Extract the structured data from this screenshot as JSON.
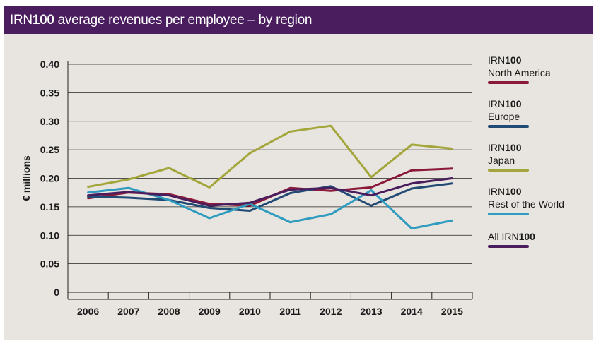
{
  "header": {
    "title_brand": "IRN",
    "title_brand_bold": "100",
    "title_rest": " average revenues per employee – by region"
  },
  "chart_data": {
    "type": "line",
    "title": "IRN100 average revenues per employee – by region",
    "xlabel": "",
    "ylabel": "€ millions",
    "categories": [
      "2006",
      "2007",
      "2008",
      "2009",
      "2010",
      "2011",
      "2012",
      "2013",
      "2014",
      "2015"
    ],
    "ylim": [
      0,
      0.4
    ],
    "yticks": [
      "0",
      "0.05",
      "0.10",
      "0.15",
      "0.20",
      "0.25",
      "0.30",
      "0.35",
      "0.40"
    ],
    "ytick_values": [
      0,
      0.05,
      0.1,
      0.15,
      0.2,
      0.25,
      0.3,
      0.35,
      0.4
    ],
    "grid": true,
    "legend_position": "right",
    "series": [
      {
        "name": "IRN100 North America",
        "legend_top": "IRN",
        "legend_top_bold": "100",
        "legend_bottom": "North America",
        "color": "#8b1a3a",
        "values": [
          0.165,
          0.175,
          0.172,
          0.155,
          0.152,
          0.183,
          0.178,
          0.184,
          0.214,
          0.217
        ]
      },
      {
        "name": "IRN100 Europe",
        "legend_top": "IRN",
        "legend_top_bold": "100",
        "legend_bottom": "Europe",
        "color": "#214a75",
        "values": [
          0.168,
          0.166,
          0.162,
          0.148,
          0.143,
          0.174,
          0.186,
          0.152,
          0.182,
          0.191
        ]
      },
      {
        "name": "IRN100 Japan",
        "legend_top": "IRN",
        "legend_top_bold": "100",
        "legend_bottom": "Japan",
        "color": "#a3a63a",
        "values": [
          0.185,
          0.198,
          0.218,
          0.184,
          0.244,
          0.282,
          0.292,
          0.202,
          0.259,
          0.252
        ]
      },
      {
        "name": "IRN100 Rest of the World",
        "legend_top": "IRN",
        "legend_top_bold": "100",
        "legend_bottom": "Rest of the World",
        "color": "#2e9bbf",
        "values": [
          0.175,
          0.183,
          0.162,
          0.13,
          0.155,
          0.123,
          0.137,
          0.179,
          0.112,
          0.126
        ]
      },
      {
        "name": "All IRN100",
        "legend_top": "All IRN",
        "legend_top_bold": "100",
        "legend_bottom": "",
        "color": "#4a1e5e",
        "values": [
          0.17,
          0.176,
          0.17,
          0.152,
          0.157,
          0.18,
          0.183,
          0.17,
          0.191,
          0.2
        ]
      }
    ]
  }
}
